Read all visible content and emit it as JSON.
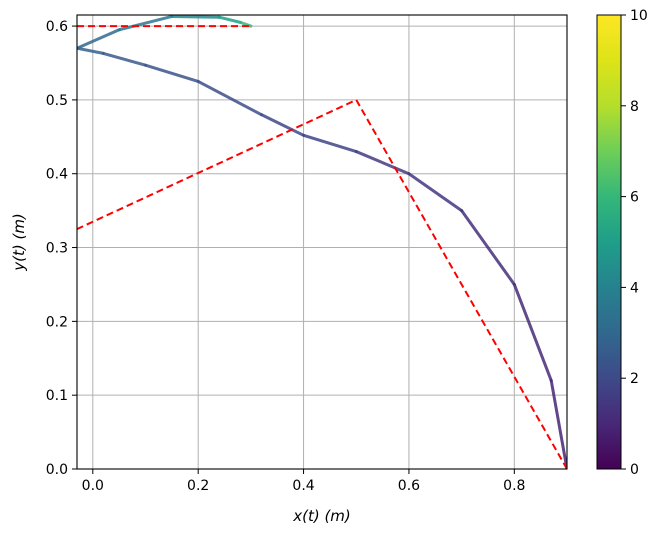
{
  "chart_data": {
    "type": "line",
    "title": "",
    "xlabel": "x(t) (m)",
    "ylabel": "y(t) (m)",
    "xlim": [
      -0.03,
      0.9
    ],
    "ylim": [
      0.0,
      0.615
    ],
    "x_ticks": [
      0.0,
      0.2,
      0.4,
      0.6,
      0.8
    ],
    "x_tick_labels": [
      "0.0",
      "0.2",
      "0.4",
      "0.6",
      "0.8"
    ],
    "y_ticks": [
      0.0,
      0.1,
      0.2,
      0.3,
      0.4,
      0.5,
      0.6
    ],
    "y_tick_labels": [
      "0.0",
      "0.1",
      "0.2",
      "0.3",
      "0.4",
      "0.5",
      "0.6"
    ],
    "grid": true,
    "colorbar": {
      "colormap": "viridis",
      "range": [
        0,
        10
      ],
      "ticks": [
        0,
        2,
        4,
        6,
        8,
        10
      ],
      "tick_labels": [
        "0",
        "2",
        "4",
        "6",
        "8",
        "10"
      ]
    },
    "series": [
      {
        "style": "solid",
        "colored_by": "time",
        "points": [
          {
            "x": 0.9,
            "y": 0.0,
            "t": 0.9
          },
          {
            "x": 0.87,
            "y": 0.12,
            "t": 1.0
          },
          {
            "x": 0.8,
            "y": 0.25,
            "t": 1.1
          },
          {
            "x": 0.7,
            "y": 0.35,
            "t": 1.3
          },
          {
            "x": 0.6,
            "y": 0.4,
            "t": 1.5
          },
          {
            "x": 0.5,
            "y": 0.43,
            "t": 1.7
          },
          {
            "x": 0.4,
            "y": 0.452,
            "t": 1.9
          },
          {
            "x": 0.32,
            "y": 0.48,
            "t": 2.0
          },
          {
            "x": 0.2,
            "y": 0.525,
            "t": 2.2
          },
          {
            "x": 0.1,
            "y": 0.547,
            "t": 2.4
          },
          {
            "x": 0.02,
            "y": 0.563,
            "t": 2.6
          },
          {
            "x": -0.03,
            "y": 0.57,
            "t": 2.8
          },
          {
            "x": 0.05,
            "y": 0.595,
            "t": 3.2
          },
          {
            "x": 0.15,
            "y": 0.613,
            "t": 3.8
          },
          {
            "x": 0.24,
            "y": 0.612,
            "t": 4.6
          },
          {
            "x": 0.28,
            "y": 0.605,
            "t": 5.5
          },
          {
            "x": 0.3,
            "y": 0.6,
            "t": 6.5
          }
        ]
      },
      {
        "style": "dashed",
        "color": "#ff0000",
        "points": [
          {
            "x": 0.9,
            "y": 0.0
          },
          {
            "x": 0.5,
            "y": 0.5
          },
          {
            "x": -0.03,
            "y": 0.325
          }
        ]
      },
      {
        "style": "dashed",
        "color": "#ff0000",
        "points": [
          {
            "x": -0.03,
            "y": 0.6
          },
          {
            "x": 0.3,
            "y": 0.6
          }
        ]
      }
    ]
  }
}
